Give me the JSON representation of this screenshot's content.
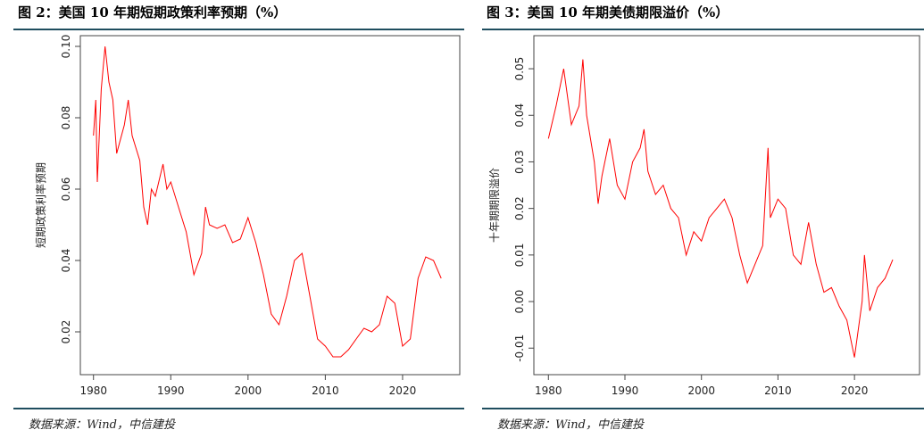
{
  "chart_data": [
    {
      "type": "line",
      "title": "图 2：美国 10 年期短期政策利率预期（%）",
      "ylabel": "短期政策利率预期",
      "source": "数据来源：Wind，中信建投",
      "x": [
        1980,
        1980.3,
        1980.5,
        1981,
        1981.5,
        1982,
        1982.5,
        1983,
        1984,
        1984.5,
        1985,
        1986,
        1986.5,
        1987,
        1987.5,
        1988,
        1989,
        1989.5,
        1990,
        1991,
        1992,
        1993,
        1994,
        1994.5,
        1995,
        1996,
        1997,
        1998,
        1999,
        2000,
        2001,
        2002,
        2003,
        2004,
        2005,
        2006,
        2007,
        2008,
        2009,
        2010,
        2011,
        2012,
        2013,
        2014,
        2015,
        2016,
        2017,
        2018,
        2019,
        2020,
        2021,
        2022,
        2023,
        2024,
        2025
      ],
      "series": [
        {
          "name": "短期政策利率预期",
          "color": "#ff0000",
          "values": [
            0.075,
            0.085,
            0.062,
            0.088,
            0.1,
            0.09,
            0.085,
            0.07,
            0.078,
            0.085,
            0.075,
            0.068,
            0.055,
            0.05,
            0.06,
            0.058,
            0.067,
            0.06,
            0.062,
            0.055,
            0.048,
            0.036,
            0.042,
            0.055,
            0.05,
            0.049,
            0.05,
            0.045,
            0.046,
            0.052,
            0.045,
            0.036,
            0.025,
            0.022,
            0.03,
            0.04,
            0.042,
            0.03,
            0.018,
            0.016,
            0.013,
            0.013,
            0.015,
            0.018,
            0.021,
            0.02,
            0.022,
            0.03,
            0.028,
            0.016,
            0.018,
            0.035,
            0.041,
            0.04,
            0.035
          ]
        }
      ],
      "xlim": [
        1978.3,
        2027.4
      ],
      "xticks": [
        1980,
        1990,
        2000,
        2010,
        2020
      ],
      "ylim": [
        0.008,
        0.103
      ],
      "yticks": [
        0.02,
        0.04,
        0.06,
        0.08,
        {
          "value": 0.1,
          "label": "0.10"
        }
      ]
    },
    {
      "type": "line",
      "title": "图 3：美国 10 年期美债期限溢价（%）",
      "ylabel": "十年期期限溢价",
      "source": "数据来源：Wind，中信建投",
      "x": [
        1980,
        1981,
        1982,
        1983,
        1984,
        1984.5,
        1985,
        1986,
        1986.5,
        1987,
        1988,
        1989,
        1990,
        1991,
        1992,
        1992.5,
        1993,
        1994,
        1995,
        1996,
        1997,
        1998,
        1999,
        2000,
        2001,
        2002,
        2003,
        2004,
        2005,
        2006,
        2007,
        2008,
        2008.7,
        2009,
        2010,
        2011,
        2012,
        2013,
        2014,
        2015,
        2016,
        2017,
        2018,
        2019,
        2020,
        2021,
        2021.3,
        2022,
        2023,
        2024,
        2025
      ],
      "series": [
        {
          "name": "十年期期限溢价",
          "color": "#ff0000",
          "values": [
            0.035,
            0.042,
            0.05,
            0.038,
            0.042,
            0.052,
            0.04,
            0.03,
            0.021,
            0.027,
            0.035,
            0.025,
            0.022,
            0.03,
            0.033,
            0.037,
            0.028,
            0.023,
            0.025,
            0.02,
            0.018,
            0.01,
            0.015,
            0.013,
            0.018,
            0.02,
            0.022,
            0.018,
            0.01,
            0.004,
            0.008,
            0.012,
            0.033,
            0.018,
            0.022,
            0.02,
            0.01,
            0.008,
            0.017,
            0.008,
            0.002,
            0.003,
            -0.001,
            -0.004,
            -0.012,
            0.0,
            0.01,
            -0.002,
            0.003,
            0.005,
            0.009
          ]
        }
      ],
      "xlim": [
        1978.1,
        2028.5
      ],
      "xticks": [
        1980,
        1990,
        2000,
        2010,
        2020
      ],
      "ylim": [
        -0.0157,
        0.0571
      ],
      "yticks": [
        -0.01,
        {
          "value": 0,
          "label": "0.00"
        },
        0.01,
        0.02,
        0.03,
        0.04,
        0.05
      ]
    }
  ]
}
